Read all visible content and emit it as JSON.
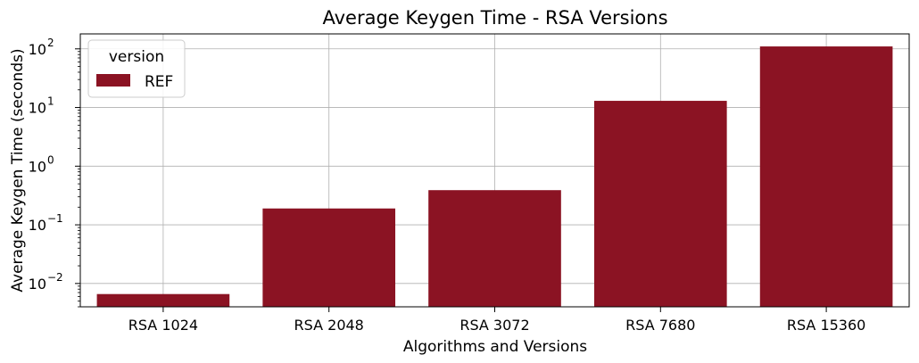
{
  "chart_data": {
    "type": "bar",
    "title": "Average Keygen Time - RSA Versions",
    "xlabel": "Algorithms and Versions",
    "ylabel": "Average Keygen Time (seconds)",
    "yscale": "log",
    "ylim": [
      0.004,
      180
    ],
    "yticks": [
      {
        "value": 0.01,
        "base": "10",
        "exp": "−2"
      },
      {
        "value": 0.1,
        "base": "10",
        "exp": "−1"
      },
      {
        "value": 1,
        "base": "10",
        "exp": "0"
      },
      {
        "value": 10,
        "base": "10",
        "exp": "1"
      },
      {
        "value": 100,
        "base": "10",
        "exp": "2"
      }
    ],
    "categories": [
      "RSA 1024",
      "RSA 2048",
      "RSA 3072",
      "RSA 7680",
      "RSA 15360"
    ],
    "series": [
      {
        "name": "REF",
        "color": "#8b1323",
        "values": [
          0.0066,
          0.19,
          0.39,
          13,
          110
        ]
      }
    ],
    "grid": true,
    "legend": {
      "title": "version",
      "position": "upper left"
    }
  }
}
